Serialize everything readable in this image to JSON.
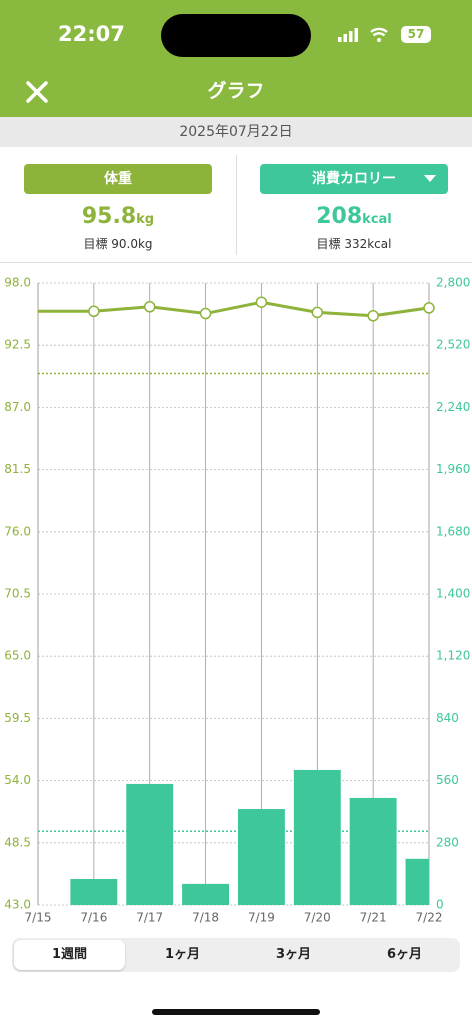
{
  "status_bar": {
    "time": "22:07",
    "battery": "57"
  },
  "header": {
    "title": "グラフ"
  },
  "date": "2025年07月22日",
  "weight_panel": {
    "button": "体重",
    "value": "95.8",
    "unit": "kg",
    "target": "目標 90.0kg"
  },
  "calorie_panel": {
    "button": "消費カロリー",
    "value": "208",
    "unit": "kcal",
    "target": "目標 332kcal"
  },
  "chart_data": {
    "type": "bar_line",
    "categories": [
      "7/15",
      "7/16",
      "7/17",
      "7/18",
      "7/19",
      "7/20",
      "7/21",
      "7/22"
    ],
    "series": [
      {
        "name": "体重",
        "color": "#8db33a",
        "type": "line",
        "values": [
          95.5,
          95.5,
          95.9,
          95.3,
          96.3,
          95.4,
          95.1,
          95.8
        ]
      },
      {
        "name": "消費カロリー",
        "color": "#3ec79a",
        "type": "bar",
        "axis": "y2",
        "values": [
          null,
          117,
          545,
          95,
          432,
          608,
          482,
          208
        ]
      }
    ],
    "targets": {
      "y": 90.0,
      "y2": 332
    },
    "ylim": [
      43.0,
      98.0
    ],
    "yticks": [
      {
        "value": 43.0,
        "label": "43.0"
      },
      48.5,
      {
        "value": 54.0,
        "label": "54.0"
      },
      59.5,
      {
        "value": 65.0,
        "label": "65.0"
      },
      70.5,
      {
        "value": 76.0,
        "label": "76.0"
      },
      81.5,
      {
        "value": 87.0,
        "label": "87.0"
      },
      92.5,
      {
        "value": 98.0,
        "label": "98.0"
      }
    ],
    "y2lim": [
      0,
      2800
    ],
    "y2ticks": [
      0,
      280,
      560,
      840,
      {
        "value": 1120,
        "label": "1,120"
      },
      {
        "value": 1400,
        "label": "1,400"
      },
      {
        "value": 1680,
        "label": "1,680"
      },
      {
        "value": 1960,
        "label": "1,960"
      },
      {
        "value": 2240,
        "label": "2,240"
      },
      {
        "value": 2520,
        "label": "2,520"
      },
      {
        "value": 2800,
        "label": "2,800"
      }
    ],
    "grid": true
  },
  "tabs": {
    "items": [
      "1週間",
      "1ヶ月",
      "3ヶ月",
      "6ヶ月"
    ],
    "selected": 0
  }
}
